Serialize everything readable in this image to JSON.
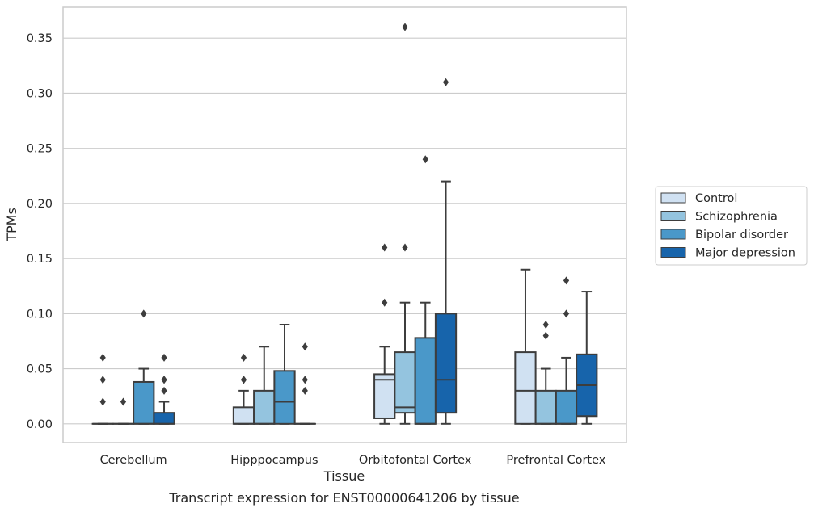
{
  "chart_data": {
    "type": "boxplot",
    "caption": "Transcript expression for ENST00000641206 by tissue",
    "xlabel": "Tissue",
    "ylabel": "TPMs",
    "ylim": [
      -0.017,
      0.378
    ],
    "yticks": [
      "0.00",
      "0.05",
      "0.10",
      "0.15",
      "0.20",
      "0.25",
      "0.30",
      "0.35"
    ],
    "ytick_values": [
      0,
      0.05,
      0.1,
      0.15,
      0.2,
      0.25,
      0.3,
      0.35
    ],
    "grid": true,
    "legend_position": "right",
    "categories": [
      "Cerebellum",
      "Hipppocampus",
      "Orbitofontal Cortex",
      "Prefrontal Cortex"
    ],
    "series": [
      {
        "name": "Control",
        "color": "#d0e1f2",
        "boxes": [
          {
            "min": 0,
            "q1": 0,
            "median": 0,
            "q3": 0,
            "max": 0,
            "outliers": [
              0.02,
              0.04,
              0.06
            ]
          },
          {
            "min": 0,
            "q1": 0,
            "median": 0,
            "q3": 0.015,
            "max": 0.03,
            "outliers": [
              0.04,
              0.04,
              0.06
            ]
          },
          {
            "min": 0,
            "q1": 0.005,
            "median": 0.04,
            "q3": 0.045,
            "max": 0.07,
            "outliers": [
              0.11,
              0.16
            ]
          },
          {
            "min": 0,
            "q1": 0,
            "median": 0.03,
            "q3": 0.065,
            "max": 0.14,
            "outliers": []
          }
        ]
      },
      {
        "name": "Schizophrenia",
        "color": "#94c4df",
        "boxes": [
          {
            "min": 0,
            "q1": 0,
            "median": 0,
            "q3": 0,
            "max": 0,
            "outliers": [
              0.02
            ]
          },
          {
            "min": 0,
            "q1": 0,
            "median": 0,
            "q3": 0.03,
            "max": 0.07,
            "outliers": []
          },
          {
            "min": 0,
            "q1": 0.01,
            "median": 0.015,
            "q3": 0.065,
            "max": 0.11,
            "outliers": [
              0.16,
              0.36
            ]
          },
          {
            "min": 0,
            "q1": 0,
            "median": 0,
            "q3": 0.03,
            "max": 0.05,
            "outliers": [
              0.08,
              0.09
            ]
          }
        ]
      },
      {
        "name": "Bipolar disorder",
        "color": "#4a98c9",
        "boxes": [
          {
            "min": 0,
            "q1": 0,
            "median": 0,
            "q3": 0.038,
            "max": 0.05,
            "outliers": [
              0.1
            ]
          },
          {
            "min": 0,
            "q1": 0,
            "median": 0.02,
            "q3": 0.048,
            "max": 0.09,
            "outliers": []
          },
          {
            "min": 0,
            "q1": 0,
            "median": 0,
            "q3": 0.078,
            "max": 0.11,
            "outliers": [
              0.24
            ]
          },
          {
            "min": 0,
            "q1": 0,
            "median": 0,
            "q3": 0.03,
            "max": 0.06,
            "outliers": [
              0.1,
              0.13
            ]
          }
        ]
      },
      {
        "name": "Major depression",
        "color": "#1764ab",
        "boxes": [
          {
            "min": 0,
            "q1": 0,
            "median": 0,
            "q3": 0.01,
            "max": 0.02,
            "outliers": [
              0.03,
              0.04,
              0.04,
              0.06
            ]
          },
          {
            "min": 0,
            "q1": 0,
            "median": 0,
            "q3": 0,
            "max": 0,
            "outliers": [
              0.03,
              0.04,
              0.07
            ]
          },
          {
            "min": 0,
            "q1": 0.01,
            "median": 0.04,
            "q3": 0.1,
            "max": 0.22,
            "outliers": [
              0.31
            ]
          },
          {
            "min": 0,
            "q1": 0.007,
            "median": 0.035,
            "q3": 0.063,
            "max": 0.12,
            "outliers": []
          }
        ]
      }
    ]
  }
}
